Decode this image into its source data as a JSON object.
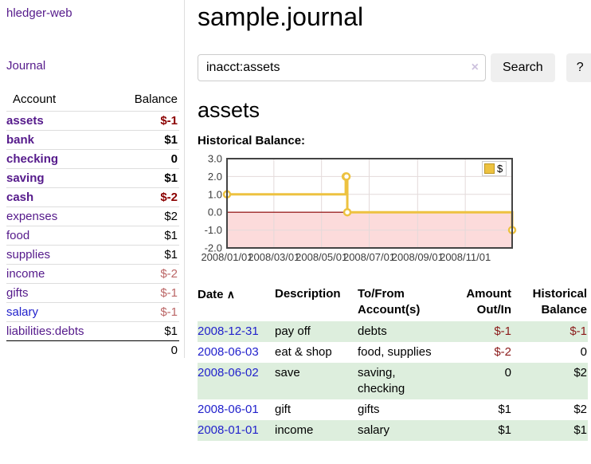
{
  "app": {
    "brand": "hledger-web",
    "nav_journal": "Journal"
  },
  "sidebar": {
    "header": {
      "account": "Account",
      "balance": "Balance"
    },
    "accounts": [
      {
        "name": "assets",
        "balance": "$-1"
      },
      {
        "name": "bank",
        "balance": "$1"
      },
      {
        "name": "checking",
        "balance": "0"
      },
      {
        "name": "saving",
        "balance": "$1"
      },
      {
        "name": "cash",
        "balance": "$-2"
      },
      {
        "name": "expenses",
        "balance": "$2"
      },
      {
        "name": "food",
        "balance": "$1"
      },
      {
        "name": "supplies",
        "balance": "$1"
      },
      {
        "name": "income",
        "balance": "$-2"
      },
      {
        "name": "gifts",
        "balance": "$-1"
      },
      {
        "name": "salary",
        "balance": "$-1"
      },
      {
        "name": "liabilities:debts",
        "balance": "$1"
      }
    ],
    "total": "0"
  },
  "header": {
    "title": "sample.journal"
  },
  "search": {
    "value": "inacct:assets",
    "clear": "×",
    "button": "Search",
    "help": "?"
  },
  "main": {
    "account_title": "assets",
    "chart_label": "Historical Balance:"
  },
  "chart_data": {
    "type": "line",
    "step": true,
    "title": "Historical Balance",
    "series": [
      {
        "name": "$",
        "points": [
          [
            "2008/01/01",
            1
          ],
          [
            "2008/06/01",
            2
          ],
          [
            "2008/06/02",
            2
          ],
          [
            "2008/06/03",
            0
          ],
          [
            "2008/12/31",
            -1
          ]
        ]
      }
    ],
    "x_ticks": [
      "2008/01/01",
      "2008/03/01",
      "2008/05/01",
      "2008/07/01",
      "2008/09/01",
      "2008/11/01"
    ],
    "y_ticks": [
      "3.0",
      "2.0",
      "1.0",
      "0.0",
      "-1.0",
      "-2.0"
    ],
    "ylim": [
      -2,
      3
    ],
    "grid": true,
    "legend": {
      "label": "$",
      "position": "top-right"
    },
    "line_color": "#edc240",
    "zero_line_color": "#8b0000",
    "negative_region_color": "#fcdbdb",
    "border_color": "#444444"
  },
  "register": {
    "headers": {
      "date": "Date",
      "sort_indicator": "∧",
      "description": "Description",
      "accounts": "To/From Account(s)",
      "amount": "Amount Out/In",
      "balance": "Historical Balance"
    },
    "rows": [
      {
        "date": "2008-12-31",
        "description": "pay off",
        "accounts": "debts",
        "amount": "$-1",
        "balance": "$-1"
      },
      {
        "date": "2008-06-03",
        "description": "eat & shop",
        "accounts": "food, supplies",
        "amount": "$-2",
        "balance": "0"
      },
      {
        "date": "2008-06-02",
        "description": "save",
        "accounts": "saving, checking",
        "amount": "0",
        "balance": "$2"
      },
      {
        "date": "2008-06-01",
        "description": "gift",
        "accounts": "gifts",
        "amount": "$1",
        "balance": "$2"
      },
      {
        "date": "2008-01-01",
        "description": "income",
        "accounts": "salary",
        "amount": "$1",
        "balance": "$1"
      }
    ]
  }
}
